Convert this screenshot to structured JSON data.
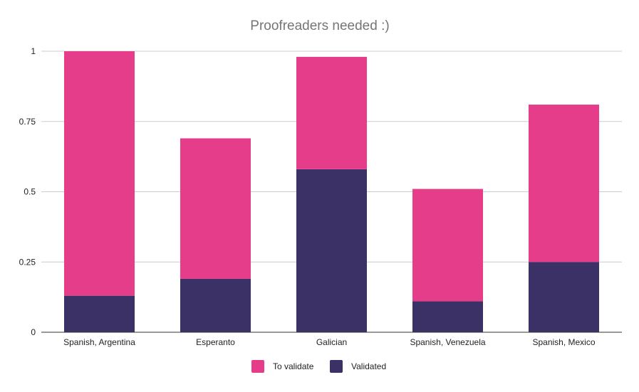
{
  "chart_data": {
    "type": "bar",
    "stacked": true,
    "title": "Proofreaders needed :)",
    "xlabel": "",
    "ylabel": "",
    "categories": [
      "Spanish, Argentina",
      "Esperanto",
      "Galician",
      "Spanish, Venezuela",
      "Spanish, Mexico"
    ],
    "series": [
      {
        "name": "Validated",
        "color": "#3b3167",
        "values": [
          0.13,
          0.19,
          0.58,
          0.11,
          0.25
        ]
      },
      {
        "name": "To validate",
        "color": "#e63d8b",
        "values": [
          0.87,
          0.5,
          0.4,
          0.4,
          0.56
        ]
      }
    ],
    "ylim": [
      0,
      1
    ],
    "yticks": [
      0,
      0.25,
      0.5,
      0.75,
      1
    ],
    "ytick_labels": [
      "0",
      "0.25",
      "0.5",
      "0.75",
      "1"
    ],
    "grid": true,
    "legend_placement": "bottom-center",
    "legend_order": [
      "To validate",
      "Validated"
    ]
  }
}
